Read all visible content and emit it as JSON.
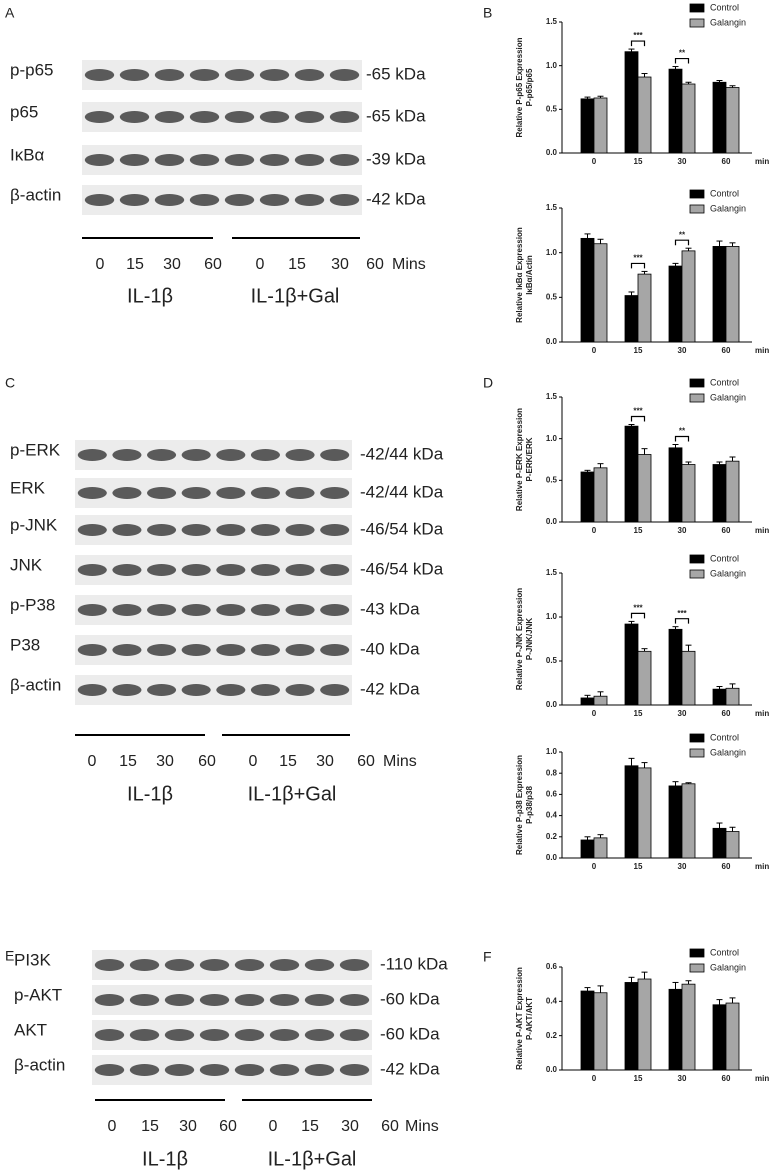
{
  "blots": [
    {
      "label": "A",
      "rows": [
        {
          "name": "p-p65",
          "kda": "-65 kDa"
        },
        {
          "name": "p65",
          "kda": "-65 kDa"
        },
        {
          "name": "IκBα",
          "kda": "-39 kDa"
        },
        {
          "name": "β-actin",
          "kda": "-42 kDa"
        }
      ],
      "times": [
        "0",
        "15",
        "30",
        "60",
        "0",
        "15",
        "30",
        "60"
      ],
      "time_unit": "Mins",
      "groups": [
        "IL-1β",
        "IL-1β+Gal"
      ]
    },
    {
      "label": "C",
      "rows": [
        {
          "name": "p-ERK",
          "kda": "-42/44 kDa"
        },
        {
          "name": "ERK",
          "kda": "-42/44 kDa"
        },
        {
          "name": "p-JNK",
          "kda": "-46/54 kDa"
        },
        {
          "name": "JNK",
          "kda": "-46/54 kDa"
        },
        {
          "name": "p-P38",
          "kda": "-43 kDa"
        },
        {
          "name": "P38",
          "kda": "-40 kDa"
        },
        {
          "name": "β-actin",
          "kda": "-42 kDa"
        }
      ],
      "times": [
        "0",
        "15",
        "30",
        "60",
        "0",
        "15",
        "30",
        "60"
      ],
      "time_unit": "Mins",
      "groups": [
        "IL-1β",
        "IL-1β+Gal"
      ]
    },
    {
      "label": "E",
      "rows": [
        {
          "name": "PI3K",
          "kda": "-110 kDa"
        },
        {
          "name": "p-AKT",
          "kda": "-60 kDa"
        },
        {
          "name": "AKT",
          "kda": "-60 kDa"
        },
        {
          "name": "β-actin",
          "kda": "-42 kDa"
        }
      ],
      "times": [
        "0",
        "15",
        "30",
        "60",
        "0",
        "15",
        "30",
        "60"
      ],
      "time_unit": "Mins",
      "groups": [
        "IL-1β",
        "IL-1β+Gal"
      ]
    }
  ],
  "chart_data": [
    {
      "type": "bar",
      "panel": "B",
      "ylabel": [
        "Relative P-p65 Expression",
        "P-p65/p65"
      ],
      "xlabel": "min",
      "legend": "upper right",
      "categories": [
        "0",
        "15",
        "30",
        "60"
      ],
      "series": [
        {
          "name": "Control",
          "color": "#000000",
          "values": [
            0.62,
            1.16,
            0.96,
            0.81
          ],
          "errors": [
            0.02,
            0.03,
            0.03,
            0.02
          ]
        },
        {
          "name": "Galangin",
          "color": "#a6a6a6",
          "values": [
            0.63,
            0.87,
            0.79,
            0.75
          ],
          "errors": [
            0.02,
            0.04,
            0.02,
            0.02
          ]
        }
      ],
      "annotations": [
        {
          "text": "***",
          "category": "15"
        },
        {
          "text": "**",
          "category": "30"
        }
      ],
      "ylim": [
        0,
        1.5
      ],
      "yticks": [
        {
          "value": 0,
          "label": "0.0"
        },
        {
          "value": 0.5,
          "label": "0.5"
        },
        {
          "value": 1,
          "label": "1.0"
        },
        {
          "value": 1.5,
          "label": "1.5"
        }
      ]
    },
    {
      "type": "bar",
      "ylabel": [
        "Relative IκBα Expression",
        "IκBα/Actin"
      ],
      "xlabel": "min",
      "legend": "upper right",
      "categories": [
        "0",
        "15",
        "30",
        "60"
      ],
      "series": [
        {
          "name": "Control",
          "color": "#000000",
          "values": [
            1.16,
            0.52,
            0.85,
            1.07
          ],
          "errors": [
            0.05,
            0.04,
            0.03,
            0.06
          ]
        },
        {
          "name": "Galangin",
          "color": "#a6a6a6",
          "values": [
            1.1,
            0.76,
            1.02,
            1.07
          ],
          "errors": [
            0.05,
            0.03,
            0.03,
            0.04
          ]
        }
      ],
      "annotations": [
        {
          "text": "***",
          "category": "15"
        },
        {
          "text": "**",
          "category": "30"
        }
      ],
      "ylim": [
        0,
        1.5
      ],
      "yticks": [
        {
          "value": 0,
          "label": "0.0"
        },
        {
          "value": 0.5,
          "label": "0.5"
        },
        {
          "value": 1,
          "label": "1.0"
        },
        {
          "value": 1.5,
          "label": "1.5"
        }
      ]
    },
    {
      "type": "bar",
      "panel": "D",
      "ylabel": [
        "Relative P-ERK Expression",
        "P-ERK/ERK"
      ],
      "xlabel": "min",
      "legend": "upper right",
      "categories": [
        "0",
        "15",
        "30",
        "60"
      ],
      "series": [
        {
          "name": "Control",
          "color": "#000000",
          "values": [
            0.6,
            1.15,
            0.89,
            0.69
          ],
          "errors": [
            0.02,
            0.02,
            0.04,
            0.03
          ]
        },
        {
          "name": "Galangin",
          "color": "#a6a6a6",
          "values": [
            0.65,
            0.81,
            0.69,
            0.73
          ],
          "errors": [
            0.05,
            0.07,
            0.03,
            0.05
          ]
        }
      ],
      "annotations": [
        {
          "text": "***",
          "category": "15"
        },
        {
          "text": "**",
          "category": "30"
        }
      ],
      "ylim": [
        0,
        1.5
      ],
      "yticks": [
        {
          "value": 0,
          "label": "0.0"
        },
        {
          "value": 0.5,
          "label": "0.5"
        },
        {
          "value": 1,
          "label": "1.0"
        },
        {
          "value": 1.5,
          "label": "1.5"
        }
      ]
    },
    {
      "type": "bar",
      "ylabel": [
        "Relative P-JNK Expression",
        "P-JNK/JNK"
      ],
      "xlabel": "min",
      "legend": "upper right",
      "categories": [
        "0",
        "15",
        "30",
        "60"
      ],
      "series": [
        {
          "name": "Control",
          "color": "#000000",
          "values": [
            0.08,
            0.92,
            0.86,
            0.18
          ],
          "errors": [
            0.03,
            0.03,
            0.03,
            0.03
          ]
        },
        {
          "name": "Galangin",
          "color": "#a6a6a6",
          "values": [
            0.1,
            0.61,
            0.61,
            0.19
          ],
          "errors": [
            0.05,
            0.03,
            0.07,
            0.05
          ]
        }
      ],
      "annotations": [
        {
          "text": "***",
          "category": "15"
        },
        {
          "text": "***",
          "category": "30"
        }
      ],
      "ylim": [
        0,
        1.5
      ],
      "yticks": [
        {
          "value": 0,
          "label": "0.0"
        },
        {
          "value": 0.5,
          "label": "0.5"
        },
        {
          "value": 1,
          "label": "1.0"
        },
        {
          "value": 1.5,
          "label": "1.5"
        }
      ]
    },
    {
      "type": "bar",
      "ylabel": [
        "Relative P-p38 Expression",
        "P-p38/p38"
      ],
      "xlabel": "min",
      "legend": "upper right",
      "categories": [
        "0",
        "15",
        "30",
        "60"
      ],
      "series": [
        {
          "name": "Control",
          "color": "#000000",
          "values": [
            0.17,
            0.87,
            0.68,
            0.28
          ],
          "errors": [
            0.03,
            0.07,
            0.04,
            0.05
          ]
        },
        {
          "name": "Galangin",
          "color": "#a6a6a6",
          "values": [
            0.19,
            0.85,
            0.7,
            0.25
          ],
          "errors": [
            0.03,
            0.05,
            0.01,
            0.04
          ]
        }
      ],
      "annotations": [],
      "ylim": [
        0,
        1
      ],
      "yticks": [
        {
          "value": 0,
          "label": "0.0"
        },
        {
          "value": 0.2,
          "label": "0.2"
        },
        {
          "value": 0.4,
          "label": "0.4"
        },
        {
          "value": 0.6,
          "label": "0.6"
        },
        {
          "value": 0.8,
          "label": "0.8"
        },
        {
          "value": 1,
          "label": "1.0"
        }
      ]
    },
    {
      "type": "bar",
      "panel": "F",
      "ylabel": [
        "Relative P-AKT Expression",
        "P-AKT/AKT"
      ],
      "xlabel": "min",
      "legend": "upper right",
      "categories": [
        "0",
        "15",
        "30",
        "60"
      ],
      "series": [
        {
          "name": "Control",
          "color": "#000000",
          "values": [
            0.46,
            0.51,
            0.47,
            0.38
          ],
          "errors": [
            0.02,
            0.03,
            0.04,
            0.03
          ]
        },
        {
          "name": "Galangin",
          "color": "#a6a6a6",
          "values": [
            0.45,
            0.53,
            0.5,
            0.39
          ],
          "errors": [
            0.04,
            0.04,
            0.02,
            0.03
          ]
        }
      ],
      "annotations": [],
      "ylim": [
        0,
        0.6
      ],
      "yticks": [
        {
          "value": 0,
          "label": "0.0"
        },
        {
          "value": 0.2,
          "label": "0.2"
        },
        {
          "value": 0.4,
          "label": "0.4"
        },
        {
          "value": 0.6,
          "label": "0.6"
        }
      ]
    }
  ]
}
